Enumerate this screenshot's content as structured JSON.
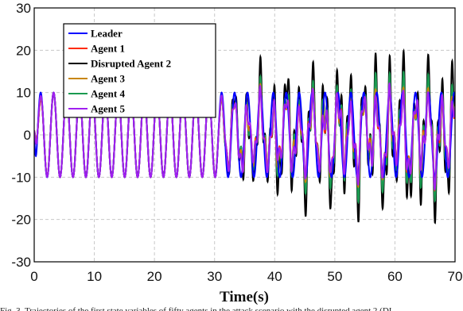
{
  "chart_data": {
    "type": "line",
    "xlabel": "Time(s)",
    "ylabel": "",
    "title": "",
    "xlim": [
      0,
      70
    ],
    "ylim": [
      -30,
      30
    ],
    "xticks": [
      0,
      10,
      20,
      30,
      40,
      50,
      60,
      70
    ],
    "yticks": [
      -30,
      -20,
      -10,
      0,
      10,
      20,
      30
    ],
    "grid": true,
    "legend_position": "top-left",
    "series": [
      {
        "name": "Leader",
        "color": "#0000ff"
      },
      {
        "name": "Agent 1",
        "color": "#ff2a00"
      },
      {
        "name": "Disrupted Agent 2",
        "color": "#000000"
      },
      {
        "name": "Agent 3",
        "color": "#c8860a"
      },
      {
        "name": "Agent 4",
        "color": "#1a9a50"
      },
      {
        "name": "Agent 5",
        "color": "#a020f0"
      }
    ],
    "signal": {
      "amplitude": 10,
      "period": 2.15,
      "disruption_start": 30,
      "leader_initial": 0,
      "followers_initial": 1,
      "disrupted_envelope": {
        "t": [
          30,
          40,
          50,
          55,
          60,
          65,
          70
        ],
        "max_abs": [
          11,
          18,
          20,
          20,
          22,
          21,
          23
        ]
      },
      "agent4_envelope": {
        "t": [
          30,
          40,
          50,
          60,
          70
        ],
        "max_abs": [
          10.5,
          13,
          15,
          17,
          16
        ]
      },
      "others_envelope": {
        "t": [
          30,
          40,
          50,
          60,
          70
        ],
        "max_abs": [
          10.5,
          11,
          12,
          13,
          13
        ]
      }
    }
  },
  "caption": "Fig. 3. Trajectories of the first state variables of fifty agents in the attack scenario with the disrupted agent 2 (DI..."
}
